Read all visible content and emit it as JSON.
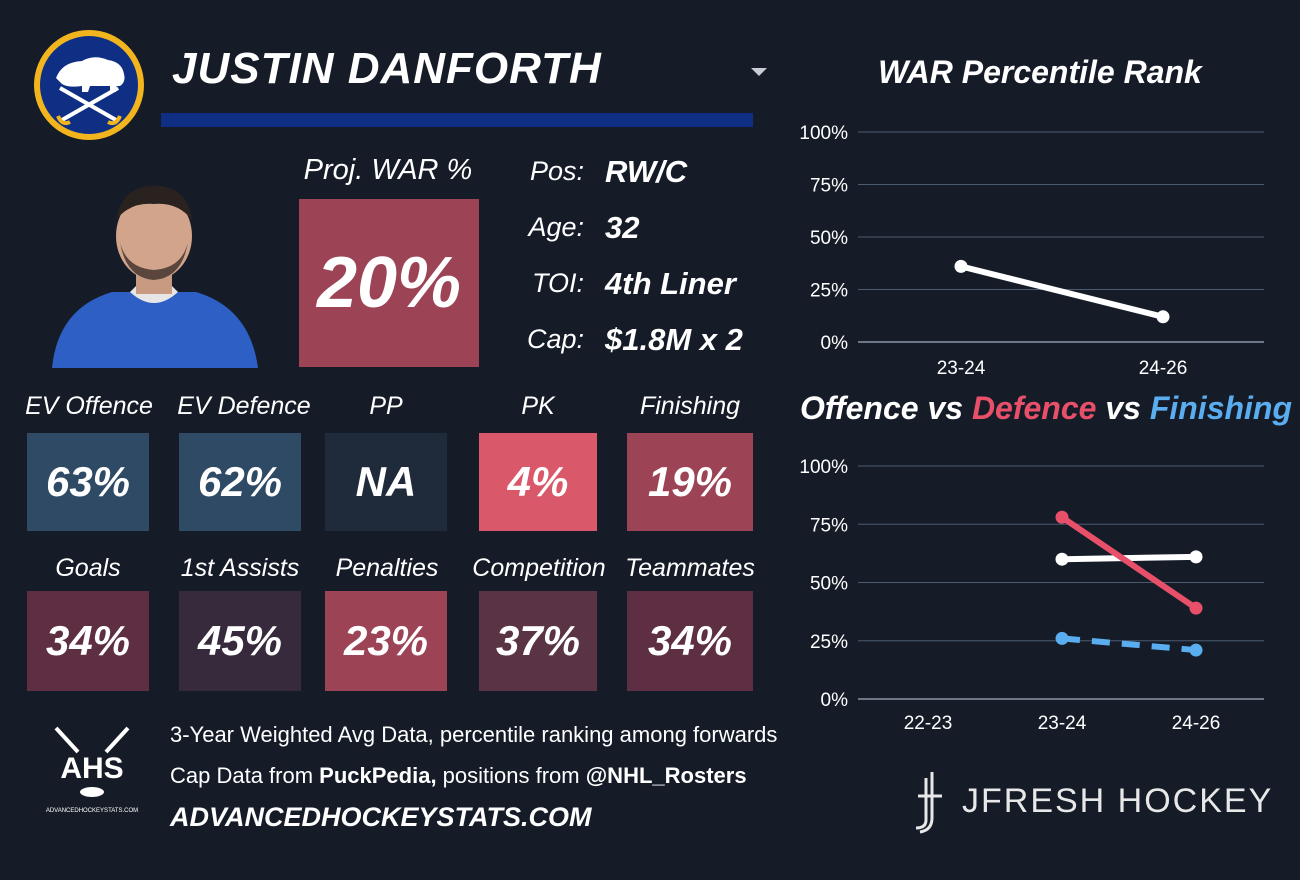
{
  "player": {
    "name": "JUSTIN DANFORTH"
  },
  "proj_war": {
    "label": "Proj. WAR %",
    "value": "20%"
  },
  "info": [
    {
      "label": "Pos:",
      "value": "RW/C"
    },
    {
      "label": "Age:",
      "value": "32"
    },
    {
      "label": "TOI:",
      "value": "4th Liner"
    },
    {
      "label": "Cap:",
      "value": "$1.8M x 2"
    }
  ],
  "stats_row1": [
    {
      "label": "EV Offence",
      "value": "63%",
      "color": "#2e4a65"
    },
    {
      "label": "EV Defence",
      "value": "62%",
      "color": "#2e4a65"
    },
    {
      "label": "PP",
      "value": "NA",
      "color": "#1f2a3a"
    },
    {
      "label": "PK",
      "value": "4%",
      "color": "#d9586a"
    },
    {
      "label": "Finishing",
      "value": "19%",
      "color": "#9c4356"
    }
  ],
  "stats_row2": [
    {
      "label": "Goals",
      "value": "34%",
      "color": "#5e2e42"
    },
    {
      "label": "1st Assists",
      "value": "45%",
      "color": "#362a3c"
    },
    {
      "label": "Penalties",
      "value": "23%",
      "color": "#9c4356"
    },
    {
      "label": "Competition",
      "value": "37%",
      "color": "#5a3345"
    },
    {
      "label": "Teammates",
      "value": "34%",
      "color": "#5e2e42"
    }
  ],
  "footer": {
    "line1": "3-Year Weighted Avg Data, percentile ranking among forwards",
    "line2_prefix": "Cap Data from ",
    "line2_source": "PuckPedia,",
    "line2_mid": " positions from ",
    "line2_handle": "@NHL_Rosters",
    "url": "ADVANCEDHOCKEYSTATS.COM",
    "ahs_logo_text": "AHS",
    "ahs_logo_url": "ADVANCEDHOCKEYSTATS.COM",
    "brand": "JFRESH HOCKEY"
  },
  "chart_data": [
    {
      "type": "line",
      "title": "WAR Percentile Rank",
      "categories": [
        "23-24",
        "24-26"
      ],
      "series": [
        {
          "values": [
            36,
            12
          ],
          "color": "#ffffff",
          "dashed": false
        }
      ],
      "ylim": [
        0,
        100
      ],
      "yticks": [
        "0%",
        "25%",
        "50%",
        "75%",
        "100%"
      ],
      "grid": true
    },
    {
      "type": "line",
      "title_parts": [
        {
          "text": "Offence",
          "color": "#ffffff"
        },
        {
          "text": " vs ",
          "color": "#ffffff"
        },
        {
          "text": "Defence",
          "color": "#e8506a"
        },
        {
          "text": " vs ",
          "color": "#ffffff"
        },
        {
          "text": "Finishing",
          "color": "#5aaef0"
        }
      ],
      "categories": [
        "22-23",
        "23-24",
        "24-26"
      ],
      "series": [
        {
          "values": [
            null,
            60,
            61
          ],
          "color": "#ffffff",
          "dashed": false
        },
        {
          "values": [
            null,
            78,
            39
          ],
          "color": "#e8506a",
          "dashed": false
        },
        {
          "values": [
            null,
            26,
            21
          ],
          "color": "#5aaef0",
          "dashed": true
        }
      ],
      "ylim": [
        0,
        100
      ],
      "yticks": [
        "0%",
        "25%",
        "50%",
        "75%",
        "100%"
      ],
      "grid": true
    }
  ]
}
